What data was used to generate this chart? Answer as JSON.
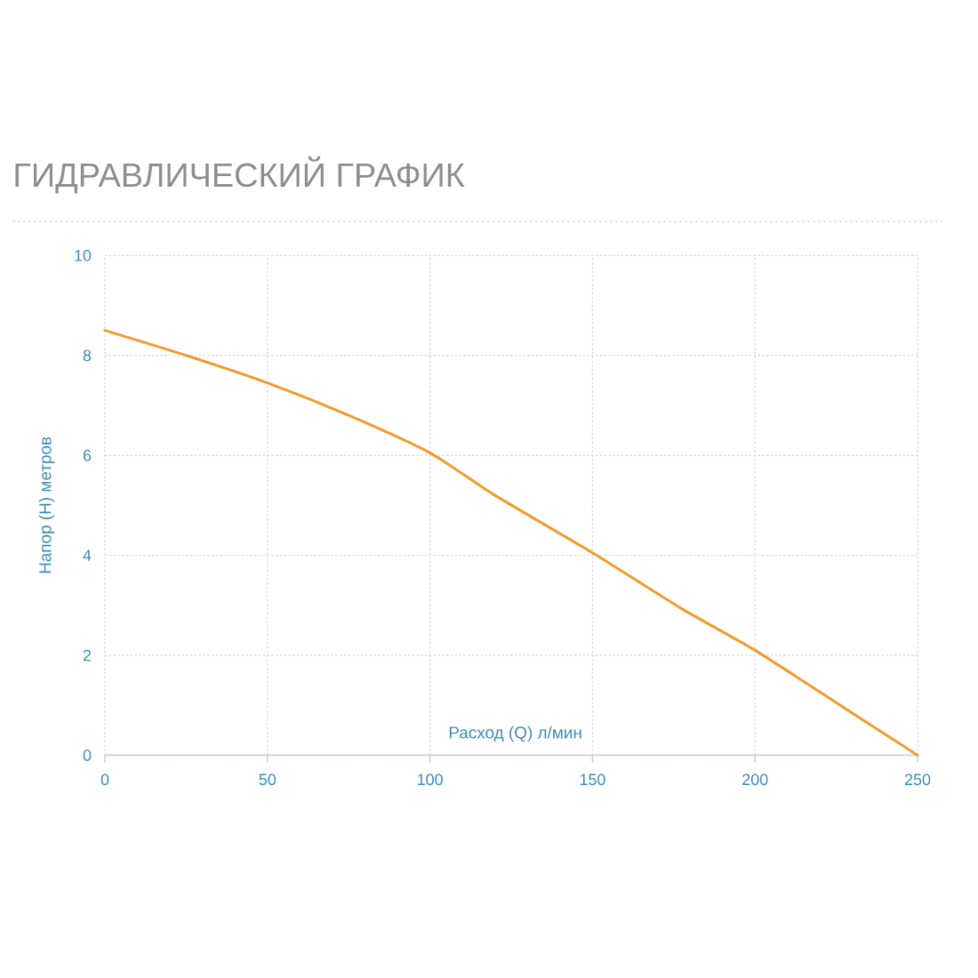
{
  "chart_data": {
    "type": "line",
    "title": "ГИДРАВЛИЧЕСКИЙ ГРАФИК",
    "xlabel": "Расход (Q) л/мин",
    "ylabel": "Напор (H) метров",
    "x": [
      0,
      25,
      50,
      75,
      100,
      120,
      150,
      177,
      200,
      225,
      250
    ],
    "values": [
      8.5,
      8.0,
      7.45,
      6.8,
      6.05,
      5.2,
      4.05,
      2.95,
      2.1,
      1.05,
      0
    ],
    "color": "#f39a2e",
    "xlim": [
      0,
      250
    ],
    "ylim": [
      0,
      10
    ],
    "xticks": [
      0,
      50,
      100,
      150,
      200,
      250
    ],
    "yticks": [
      0,
      2,
      4,
      6,
      8,
      10
    ],
    "grid": true,
    "marker": "none",
    "line_style": "solid"
  }
}
